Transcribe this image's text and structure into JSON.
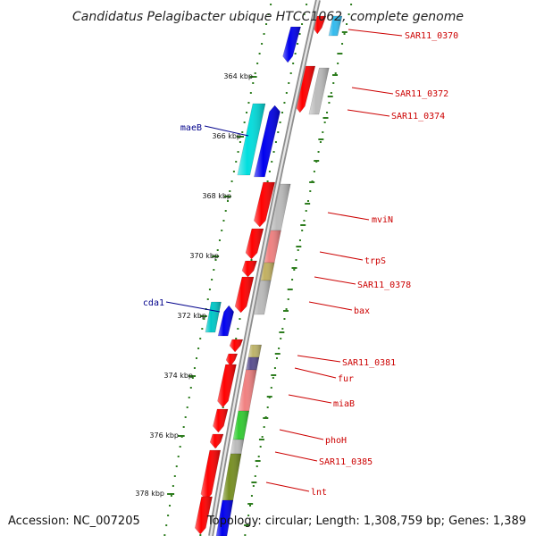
{
  "title": "Candidatus Pelagibacter ubique HTCC1062, complete genome",
  "footer": {
    "accession": "Accession: NC_007205",
    "topology": "Topology: circular; Length: 1,308,759 bp; Genes: 1,389"
  },
  "colors": {
    "backbone": "#9a9a9a",
    "tick": "#2e7d1f",
    "label_right": "#cc0000",
    "label_left": "#00008b"
  },
  "ruler": [
    {
      "label": "364 kbp"
    },
    {
      "label": "366 kbp"
    },
    {
      "label": "368 kbp"
    },
    {
      "label": "370 kbp"
    },
    {
      "label": "372 kbp"
    },
    {
      "label": "374 kbp"
    },
    {
      "label": "376 kbp"
    },
    {
      "label": "378 kbp"
    }
  ],
  "right_labels": [
    {
      "text": "SAR11_0370"
    },
    {
      "text": "SAR11_0372"
    },
    {
      "text": "SAR11_0374"
    },
    {
      "text": "mviN"
    },
    {
      "text": "trpS"
    },
    {
      "text": "SAR11_0378"
    },
    {
      "text": "bax"
    },
    {
      "text": "SAR11_0381"
    },
    {
      "text": "fur"
    },
    {
      "text": "miaB"
    },
    {
      "text": "phoH"
    },
    {
      "text": "SAR11_0385"
    },
    {
      "text": "lnt"
    }
  ],
  "left_labels": [
    {
      "text": "maeB"
    },
    {
      "text": "cda1"
    }
  ]
}
